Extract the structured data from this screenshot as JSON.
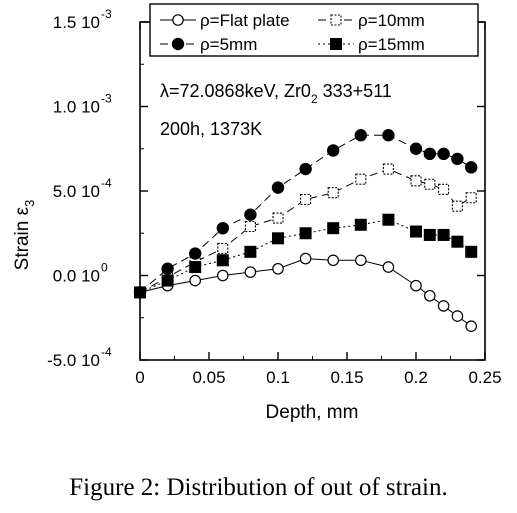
{
  "chart_data": {
    "type": "line",
    "xlabel": "Depth, mm",
    "ylabel_main": "Strain ε",
    "ylabel_sub": "3",
    "xlim": [
      0,
      0.25
    ],
    "ylim": [
      -0.0005,
      0.0015
    ],
    "x_ticks": [
      {
        "value": 0,
        "label": "0"
      },
      {
        "value": 0.05,
        "label": "0.05"
      },
      {
        "value": 0.1,
        "label": "0.1"
      },
      {
        "value": 0.15,
        "label": "0.15"
      },
      {
        "value": 0.2,
        "label": "0.2"
      },
      {
        "value": 0.25,
        "label": "0.25"
      }
    ],
    "y_ticks": [
      {
        "value": 0.0015,
        "mant": "1.5 10",
        "exp": "-3"
      },
      {
        "value": 0.001,
        "mant": "1.0 10",
        "exp": "-3"
      },
      {
        "value": 0.0005,
        "mant": "5.0 10",
        "exp": "-4"
      },
      {
        "value": 0,
        "mant": "0.0 10",
        "exp": "0"
      },
      {
        "value": -0.0005,
        "mant": "-5.0 10",
        "exp": "-4"
      }
    ],
    "annotation_line1": "λ=72.0868keV, Zr0",
    "annotation_line1_sub": "2",
    "annotation_line1_tail": " 333+511",
    "annotation_line2": "200h, 1373K",
    "legend_position": "top",
    "series": [
      {
        "name": "ρ=Flat plate",
        "marker": "open-circle",
        "line": "solid",
        "x": [
          0,
          0.02,
          0.04,
          0.06,
          0.08,
          0.1,
          0.12,
          0.14,
          0.16,
          0.18,
          0.2,
          0.21,
          0.22,
          0.23,
          0.24
        ],
        "y": [
          -0.0001,
          -6e-05,
          -3e-05,
          0.0,
          2e-05,
          4e-05,
          0.0001,
          9e-05,
          9e-05,
          5e-05,
          -6e-05,
          -0.00012,
          -0.00018,
          -0.00024,
          -0.0003
        ]
      },
      {
        "name": "ρ=10mm",
        "marker": "open-square",
        "line": "dashed",
        "x": [
          0,
          0.02,
          0.04,
          0.06,
          0.08,
          0.1,
          0.12,
          0.14,
          0.16,
          0.18,
          0.2,
          0.21,
          0.22,
          0.23,
          0.24
        ],
        "y": [
          -0.0001,
          -1e-05,
          8e-05,
          0.00016,
          0.00029,
          0.00034,
          0.00045,
          0.00049,
          0.00057,
          0.00063,
          0.00056,
          0.00054,
          0.00051,
          0.00041,
          0.00046
        ]
      },
      {
        "name": "ρ=5mm",
        "marker": "filled-circle",
        "line": "dashed",
        "x": [
          0,
          0.02,
          0.04,
          0.06,
          0.08,
          0.1,
          0.12,
          0.14,
          0.16,
          0.18,
          0.2,
          0.21,
          0.22,
          0.23,
          0.24
        ],
        "y": [
          -0.0001,
          4e-05,
          0.00013,
          0.00028,
          0.00036,
          0.00052,
          0.00063,
          0.00074,
          0.00083,
          0.00083,
          0.00075,
          0.00072,
          0.00072,
          0.00069,
          0.00064
        ]
      },
      {
        "name": "ρ=15mm",
        "marker": "filled-square",
        "line": "dotted",
        "x": [
          0,
          0.02,
          0.04,
          0.06,
          0.08,
          0.1,
          0.12,
          0.14,
          0.16,
          0.18,
          0.2,
          0.21,
          0.22,
          0.23,
          0.24
        ],
        "y": [
          -0.0001,
          -3e-05,
          5e-05,
          9e-05,
          0.00014,
          0.00022,
          0.00025,
          0.00028,
          0.0003,
          0.00033,
          0.00026,
          0.00024,
          0.00024,
          0.0002,
          0.00014
        ]
      }
    ]
  },
  "caption": "Figure 2: Distribution of out of strain."
}
